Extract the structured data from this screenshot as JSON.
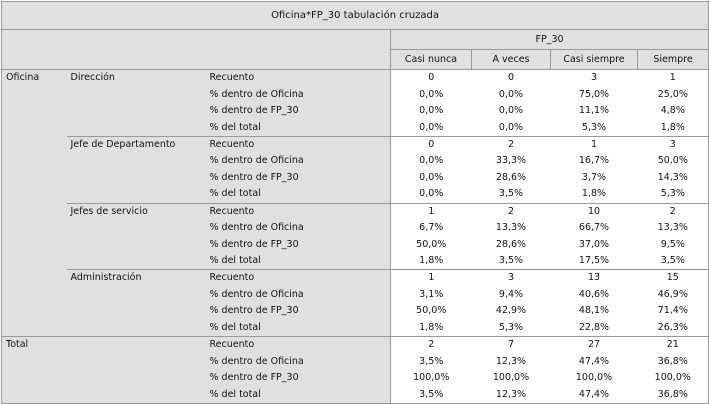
{
  "title": "Oficina*FP_30 tabulación cruzada",
  "column_group": "FP_30",
  "columns": [
    "Casi nunca",
    "A veces",
    "Casi siempre",
    "Siempre"
  ],
  "sections": [
    {
      "label": "Oficina",
      "groups": [
        {
          "label": "Dirección",
          "rows": [
            {
              "stat": "Recuento",
              "values": [
                "0",
                "0",
                "3",
                "1"
              ]
            },
            {
              "stat": "% dentro de Oficina",
              "values": [
                "0,0%",
                "0,0%",
                "75,0%",
                "25,0%"
              ]
            },
            {
              "stat": "% dentro de FP_30",
              "values": [
                "0,0%",
                "0,0%",
                "11,1%",
                "4,8%"
              ]
            },
            {
              "stat": "% del total",
              "values": [
                "0,0%",
                "0,0%",
                "5,3%",
                "1,8%"
              ]
            }
          ]
        },
        {
          "label": "Jefe de Departamento",
          "rows": [
            {
              "stat": "Recuento",
              "values": [
                "0",
                "2",
                "1",
                "3"
              ]
            },
            {
              "stat": "% dentro de Oficina",
              "values": [
                "0,0%",
                "33,3%",
                "16,7%",
                "50,0%"
              ]
            },
            {
              "stat": "% dentro de FP_30",
              "values": [
                "0,0%",
                "28,6%",
                "3,7%",
                "14,3%"
              ]
            },
            {
              "stat": "% del total",
              "values": [
                "0,0%",
                "3,5%",
                "1,8%",
                "5,3%"
              ]
            }
          ]
        },
        {
          "label": "Jefes de servicio",
          "rows": [
            {
              "stat": "Recuento",
              "values": [
                "1",
                "2",
                "10",
                "2"
              ]
            },
            {
              "stat": "% dentro de Oficina",
              "values": [
                "6,7%",
                "13,3%",
                "66,7%",
                "13,3%"
              ]
            },
            {
              "stat": "% dentro de FP_30",
              "values": [
                "50,0%",
                "28,6%",
                "37,0%",
                "9,5%"
              ]
            },
            {
              "stat": "% del total",
              "values": [
                "1,8%",
                "3,5%",
                "17,5%",
                "3,5%"
              ]
            }
          ]
        },
        {
          "label": "Administración",
          "rows": [
            {
              "stat": "Recuento",
              "values": [
                "1",
                "3",
                "13",
                "15"
              ]
            },
            {
              "stat": "% dentro de Oficina",
              "values": [
                "3,1%",
                "9,4%",
                "40,6%",
                "46,9%"
              ]
            },
            {
              "stat": "% dentro de FP_30",
              "values": [
                "50,0%",
                "42,9%",
                "48,1%",
                "71,4%"
              ]
            },
            {
              "stat": "% del total",
              "values": [
                "1,8%",
                "5,3%",
                "22,8%",
                "26,3%"
              ]
            }
          ]
        }
      ]
    },
    {
      "label": "Total",
      "groups": [
        {
          "label": "",
          "rows": [
            {
              "stat": "Recuento",
              "values": [
                "2",
                "7",
                "27",
                "21"
              ]
            },
            {
              "stat": "% dentro de Oficina",
              "values": [
                "3,5%",
                "12,3%",
                "47,4%",
                "36,8%"
              ]
            },
            {
              "stat": "% dentro de FP_30",
              "values": [
                "100,0%",
                "100,0%",
                "100,0%",
                "100,0%"
              ]
            },
            {
              "stat": "% del total",
              "values": [
                "3,5%",
                "12,3%",
                "47,4%",
                "36,8%"
              ]
            }
          ]
        }
      ]
    }
  ]
}
